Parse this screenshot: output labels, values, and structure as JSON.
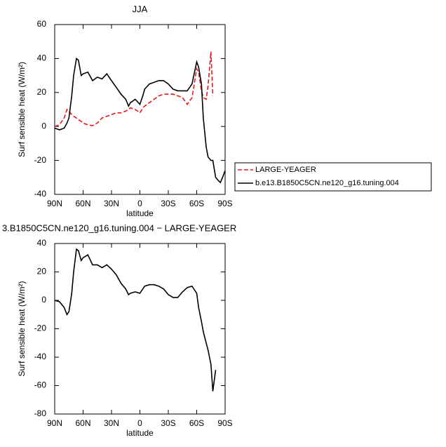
{
  "chart_data": [
    {
      "type": "line",
      "title": "JJA",
      "xlabel": "latitude",
      "ylabel": "Surf sensible heat (W/m²)",
      "x": [
        90,
        85,
        80,
        77,
        75,
        72,
        70,
        67,
        65,
        62,
        60,
        55,
        50,
        45,
        40,
        35,
        30,
        25,
        20,
        15,
        12,
        10,
        5,
        0,
        -3,
        -5,
        -10,
        -15,
        -20,
        -25,
        -30,
        -35,
        -40,
        -45,
        -50,
        -55,
        -60,
        -62,
        -65,
        -67,
        -70,
        -72,
        -75,
        -77,
        -80,
        -83,
        -85,
        -88,
        -90
      ],
      "series": [
        {
          "name": "LARGE-YEAGER",
          "color": "#e41a1c",
          "dashed": true,
          "values": [
            0,
            1,
            5,
            10,
            9,
            7,
            6,
            5,
            4,
            3,
            2,
            1,
            0.5,
            2,
            5,
            6,
            7,
            8,
            8,
            9,
            10,
            11,
            10,
            8,
            11,
            12,
            14,
            16,
            18,
            19,
            19,
            19,
            18,
            17,
            13,
            17,
            34,
            32,
            21,
            17,
            16,
            24,
            44,
            18,
            null,
            null,
            null,
            null,
            null
          ]
        },
        {
          "name": "b.e13.B1850C5CN.ne120_g16.tuning.004",
          "color": "#000000",
          "dashed": false,
          "values": [
            -1,
            -2,
            -1,
            2,
            5,
            18,
            30,
            40,
            39,
            30,
            31,
            32,
            27,
            29,
            28,
            31,
            27,
            23,
            19,
            16,
            12,
            14,
            16,
            13,
            18,
            22,
            25,
            26,
            27,
            27,
            25,
            22,
            21,
            21,
            21,
            25,
            38,
            35,
            25,
            5,
            -12,
            -18,
            -20,
            -20,
            -30,
            -32,
            -33,
            -29,
            -26
          ]
        }
      ],
      "xlim": [
        90,
        -90
      ],
      "xticks": [
        {
          "value": 90,
          "label": "90N"
        },
        {
          "value": 60,
          "label": "60N"
        },
        {
          "value": 30,
          "label": "30N"
        },
        0,
        {
          "value": -30,
          "label": "30S"
        },
        {
          "value": -60,
          "label": "60S"
        },
        {
          "value": -90,
          "label": "90S"
        }
      ],
      "ylim": [
        -40,
        60
      ],
      "yticks": [
        -40,
        -20,
        0,
        20,
        40,
        60
      ],
      "legend": "right"
    },
    {
      "type": "line",
      "title": "3.B1850C5CN.ne120_g16.tuning.004 − LARGE-YEAGER",
      "xlabel": "latitude",
      "ylabel": "Surf sensible heat (W/m²)",
      "x": [
        90,
        85,
        80,
        77,
        75,
        72,
        70,
        67,
        65,
        62,
        60,
        55,
        50,
        45,
        40,
        35,
        30,
        25,
        20,
        15,
        12,
        10,
        5,
        0,
        -3,
        -5,
        -10,
        -15,
        -20,
        -25,
        -30,
        -35,
        -40,
        -45,
        -50,
        -55,
        -60,
        -62,
        -65,
        -67,
        -70,
        -72,
        -75,
        -77,
        -80,
        -83,
        -85,
        -88,
        -90
      ],
      "series": [
        {
          "color": "#000000",
          "dashed": false,
          "values": [
            0,
            -1,
            -5,
            -10,
            -8,
            5,
            20,
            36,
            35,
            28,
            30,
            32,
            25,
            25,
            23,
            25,
            22,
            18,
            12,
            8,
            4,
            5,
            6,
            5,
            8,
            10,
            11,
            11,
            10,
            8,
            4,
            2,
            2,
            6,
            9,
            10,
            5,
            -5,
            -15,
            -22,
            -30,
            -35,
            -45,
            -64,
            -49,
            null,
            null,
            null,
            null
          ]
        }
      ],
      "xlim": [
        90,
        -90
      ],
      "xticks": [
        {
          "value": 90,
          "label": "90N"
        },
        {
          "value": 60,
          "label": "60N"
        },
        {
          "value": 30,
          "label": "30N"
        },
        0,
        {
          "value": -30,
          "label": "30S"
        },
        {
          "value": -60,
          "label": "60S"
        },
        {
          "value": -90,
          "label": "90S"
        }
      ],
      "ylim": [
        -80,
        40
      ],
      "yticks": [
        -80,
        -60,
        -40,
        -20,
        0,
        20,
        40
      ]
    }
  ]
}
